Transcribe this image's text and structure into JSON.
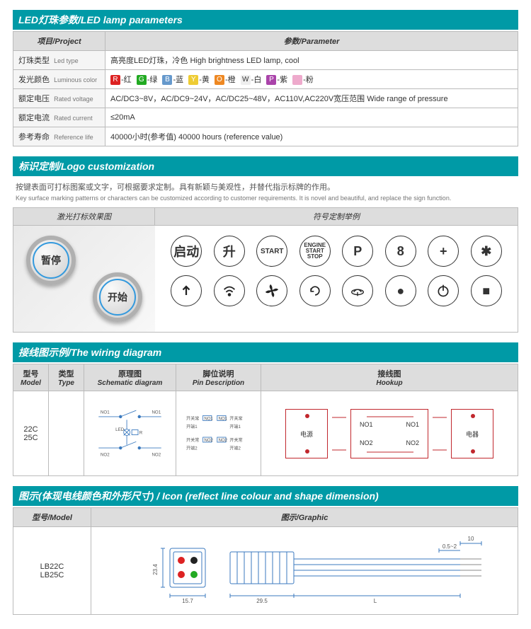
{
  "sections": {
    "led": {
      "header": "LED灯珠参数/LED lamp parameters"
    },
    "logo": {
      "header": "标识定制/Logo customization"
    },
    "wiring": {
      "header": "接线图示例/The wiring diagram"
    },
    "icon": {
      "header": "图示(体现电线颜色和外形尺寸) / Icon (reflect line colour and shape dimension)"
    }
  },
  "led_table": {
    "headers": {
      "project": "项目/Project",
      "parameter": "参数/Parameter"
    },
    "rows": [
      {
        "label_cn": "灯珠类型",
        "label_en": "Led type",
        "value": "高亮度LED灯珠，冷色  High brightness LED lamp, cool"
      },
      {
        "label_cn": "发光颜色",
        "label_en": "Luminous color",
        "value": "_COLORS_"
      },
      {
        "label_cn": "额定电压",
        "label_en": "Rated voltage",
        "value": "AC/DC3~8V，AC/DC9~24V，AC/DC25~48V，AC110V,AC220V宽压范围  Wide range of pressure"
      },
      {
        "label_cn": "额定电流",
        "label_en": "Rated current",
        "value": "≤20mA"
      },
      {
        "label_cn": "参考寿命",
        "label_en": "Reference life",
        "value": "40000小时(参考值)  40000 hours (reference value)"
      }
    ],
    "colors": [
      {
        "chip": "R",
        "bg": "#d22",
        "label": "-红"
      },
      {
        "chip": "G",
        "bg": "#2a2",
        "label": "-绿"
      },
      {
        "chip": "B",
        "bg": "#69c",
        "label": "-蓝"
      },
      {
        "chip": "Y",
        "bg": "#ec3",
        "label": "-黄"
      },
      {
        "chip": "O",
        "bg": "#e82",
        "label": "-橙"
      },
      {
        "chip": "W",
        "bg": "#eee",
        "label": "-白",
        "fg": "#333"
      },
      {
        "chip": "P",
        "bg": "#a4a",
        "label": "-紫"
      },
      {
        "chip": " ",
        "bg": "#eac",
        "label": "-粉"
      }
    ]
  },
  "logo": {
    "desc_cn": "按键表面可打标图案或文字，可根据要求定制。具有新颖与美观性，并替代指示标牌的作用。",
    "desc_en": "Key surface marking patterns or characters can be customized according to customer requirements. It is novel and beautiful, and replace the sign function.",
    "left_header": "激光打标效果图",
    "right_header": "符号定制举例",
    "product_btn1": "暂停",
    "product_btn2": "开始",
    "symbols_row1": [
      "启动",
      "升",
      "START",
      "ENGINE\nSTART\nSTOP",
      "P",
      "8",
      "+",
      "✱"
    ],
    "symbols_row2": [
      "↑",
      "wifi",
      "fan",
      "↻",
      "bell",
      "●",
      "⏻",
      "■"
    ]
  },
  "wiring": {
    "headers": {
      "model": {
        "cn": "型号",
        "en": "Model"
      },
      "type": {
        "cn": "类型",
        "en": "Type"
      },
      "schematic": {
        "cn": "原理图",
        "en": "Schematic diagram"
      },
      "pin": {
        "cn": "脚位说明",
        "en": "Pin Description"
      },
      "hookup": {
        "cn": "接线图",
        "en": "Hookup"
      }
    },
    "models": "22C\n25C",
    "pin_labels": {
      "no1": "NO1",
      "no2": "NO2",
      "led": "LED",
      "r": "R",
      "k1_cn": "开关常",
      "k1_l": "开端1",
      "k2_cn": "开关常",
      "k2_l": "开端2"
    },
    "hookup_labels": {
      "power": "电源",
      "device": "电器",
      "no1": "NO1",
      "no2": "NO2"
    },
    "colors": {
      "line": "#c1272d",
      "blue": "#3b7abf"
    }
  },
  "icon": {
    "headers": {
      "model": "型号/Model",
      "graphic": "图示/Graphic"
    },
    "models": "LB22C\nLB25C",
    "dims": {
      "h": "23.4",
      "w1": "15.7",
      "w2": "29.5",
      "L": "L",
      "t1": "10",
      "t2": "0.5~2"
    }
  }
}
